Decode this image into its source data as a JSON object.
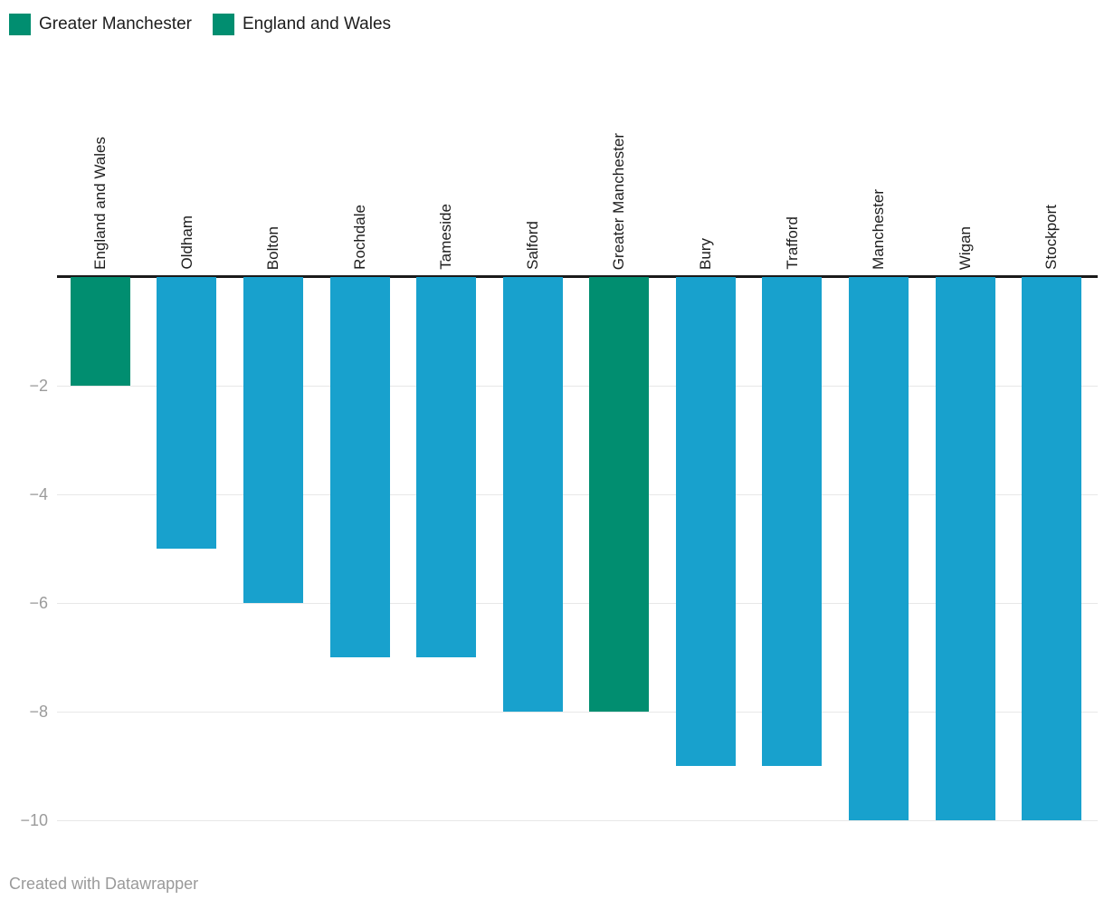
{
  "legend": {
    "items": [
      {
        "label": "Greater Manchester",
        "color": "#018e70"
      },
      {
        "label": "England and Wales",
        "color": "#018e70"
      }
    ]
  },
  "chart_data": {
    "type": "bar",
    "title": "",
    "categories": [
      "England and Wales",
      "Oldham",
      "Bolton",
      "Rochdale",
      "Tameside",
      "Salford",
      "Greater Manchester",
      "Bury",
      "Trafford",
      "Manchester",
      "Wigan",
      "Stockport"
    ],
    "values": [
      -2,
      -5,
      -6,
      -7,
      -7,
      -8,
      -8,
      -9,
      -9,
      -10,
      -10,
      -10
    ],
    "highlighted_categories": [
      "England and Wales",
      "Greater Manchester"
    ],
    "colors": {
      "default": "#18a1cd",
      "highlight": "#018e70"
    },
    "yticks": [
      -2,
      -4,
      -6,
      -8,
      -10
    ],
    "ytick_labels": [
      "−2",
      "−4",
      "−6",
      "−8",
      "−10"
    ],
    "ylim": [
      -10,
      0
    ],
    "grid": true,
    "legend_position": "top-left",
    "baseline_value": 0
  },
  "footer": {
    "credit": "Created with Datawrapper"
  }
}
